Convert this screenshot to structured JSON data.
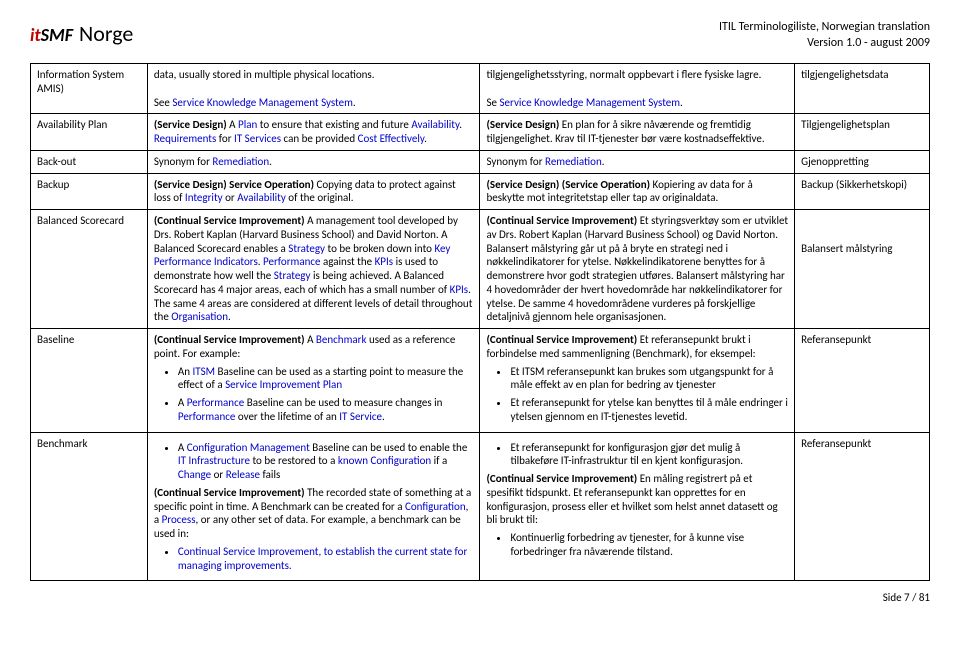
{
  "header": {
    "logo_it": "it",
    "logo_smf": "SMF",
    "title": "Norge",
    "meta_line1": "ITIL Terminologiliste, Norwegian translation",
    "meta_line2": "Version 1.0 - august 2009"
  },
  "rows": [
    {
      "term": "Information System AMIS)",
      "en_parts": [
        {
          "t": "data, usually stored in multiple physical locations."
        },
        {
          "br": true
        },
        {
          "t": "See "
        },
        {
          "t": "Service Knowledge Management System",
          "link": true
        },
        {
          "t": "."
        }
      ],
      "no_parts": [
        {
          "t": "tilgjengelighetsstyring, normalt oppbevart i flere fysiske lagre."
        },
        {
          "br": true
        },
        {
          "t": "Se "
        },
        {
          "t": "Service Knowledge Management System",
          "link": true
        },
        {
          "t": "."
        }
      ],
      "nw": "tilgjengelighetsdata"
    },
    {
      "term": "Availability Plan",
      "en_parts": [
        {
          "t": "(Service Design) ",
          "bold": true
        },
        {
          "t": "A "
        },
        {
          "t": "Plan",
          "link": true
        },
        {
          "t": " to ensure that existing and future "
        },
        {
          "t": "Availability",
          "link": true
        },
        {
          "t": ". "
        },
        {
          "t": "Requirements",
          "link": true
        },
        {
          "t": " for "
        },
        {
          "t": "IT Services",
          "link": true
        },
        {
          "t": " can be provided "
        },
        {
          "t": "Cost Effectively",
          "link": true
        },
        {
          "t": "."
        }
      ],
      "no_parts": [
        {
          "t": "(Service Design) ",
          "bold": true
        },
        {
          "t": "En plan for å sikre nåværende og fremtidig tilgjengelighet. Krav til IT-tjenester bør være kostnadseffektive."
        }
      ],
      "nw": "Tilgjengelighetsplan"
    },
    {
      "term": "Back-out",
      "en_parts": [
        {
          "t": "Synonym for "
        },
        {
          "t": "Remediation",
          "link": true
        },
        {
          "t": "."
        }
      ],
      "no_parts": [
        {
          "t": "Synonym for "
        },
        {
          "t": "Remediation",
          "link": true
        },
        {
          "t": "."
        }
      ],
      "nw": "Gjenoppretting"
    },
    {
      "term": "Backup",
      "en_parts": [
        {
          "t": "(Service Design) Service Operation) ",
          "bold": true
        },
        {
          "t": "Copying data to protect against loss of "
        },
        {
          "t": "Integrity",
          "link": true
        },
        {
          "t": " or "
        },
        {
          "t": "Availability",
          "link": true
        },
        {
          "t": " of the original."
        }
      ],
      "no_parts": [
        {
          "t": "(Service Design) (Service Operation) ",
          "bold": true
        },
        {
          "t": "Kopiering av data for å beskytte mot integritetstap eller tap av originaldata."
        }
      ],
      "nw": "Backup (Sikkerhetskopi)"
    },
    {
      "term": "Balanced Scorecard",
      "en_parts": [
        {
          "t": "(Continual Service Improvement) ",
          "bold": true
        },
        {
          "t": "A management tool developed by Drs. Robert Kaplan (Harvard Business School) and David Norton. A Balanced Scorecard enables a "
        },
        {
          "t": "Strategy",
          "link": true
        },
        {
          "t": " to be broken down into "
        },
        {
          "t": "Key Performance Indicators",
          "link": true
        },
        {
          "t": ". "
        },
        {
          "t": "Performance",
          "link": true
        },
        {
          "t": " against the "
        },
        {
          "t": "KPIs",
          "link": true
        },
        {
          "t": " is used to demonstrate how well the "
        },
        {
          "t": "Strategy",
          "link": true
        },
        {
          "t": " is being achieved. A Balanced Scorecard has 4 major areas, each of which has a small number of "
        },
        {
          "t": "KPIs",
          "link": true
        },
        {
          "t": ". The same 4 areas are considered at different levels of detail throughout the "
        },
        {
          "t": "Organisation",
          "link": true
        },
        {
          "t": "."
        }
      ],
      "no_parts": [
        {
          "t": "(Continual Service Improvement) ",
          "bold": true
        },
        {
          "t": "Et styringsverktøy som er utviklet av Drs. Robert Kaplan (Harvard Business School) og David Norton. Balansert målstyring går ut på å bryte en strategi ned i nøkkelindikatorer for ytelse. Nøkkelindikatorene benyttes for å demonstrere hvor godt strategien utføres. Balansert målstyring har 4 hovedområder der hvert hovedområde har nøkkelindikatorer for ytelse. De samme 4 hovedområdene vurderes på forskjellige detaljnivå gjennom hele organisasjonen."
        }
      ],
      "nw_parts": [
        {
          "br": true
        },
        {
          "t": "Balansert målstyring"
        }
      ]
    },
    {
      "term": "Baseline",
      "en_parts": [
        {
          "t": "(Continual Service Improvement) ",
          "bold": true
        },
        {
          "t": "A "
        },
        {
          "t": "Benchmark",
          "link": true
        },
        {
          "t": " used as a reference point. For example:"
        }
      ],
      "en_bullets": [
        [
          {
            "t": "An "
          },
          {
            "t": "ITSM",
            "link": true
          },
          {
            "t": " Baseline can be used as a starting point to measure the effect of a "
          },
          {
            "t": "Service Improvement Plan",
            "link": true
          }
        ],
        [
          {
            "t": "A "
          },
          {
            "t": "Performance",
            "link": true
          },
          {
            "t": " Baseline can be used to measure changes in "
          },
          {
            "t": "Performance",
            "link": true
          },
          {
            "t": " over the lifetime of an "
          },
          {
            "t": "IT Service",
            "link": true
          },
          {
            "t": "."
          }
        ]
      ],
      "no_parts": [
        {
          "t": "(Continual Service Improvement) ",
          "bold": true
        },
        {
          "t": "Et referansepunkt brukt i forbindelse med sammenligning (Benchmark), for eksempel:"
        }
      ],
      "no_bullets": [
        [
          {
            "t": "Et ITSM referansepunkt kan brukes som utgangspunkt for å måle effekt av en plan for bedring av tjenester"
          }
        ],
        [
          {
            "t": "Et referansepunkt for ytelse kan benyttes til å måle endringer i ytelsen gjennom en IT-tjenestes levetid."
          }
        ]
      ],
      "nw": "Referansepunkt"
    },
    {
      "term": "Benchmark",
      "en_pre_bullets": [
        [
          {
            "t": "A "
          },
          {
            "t": "Configuration Management",
            "link": true
          },
          {
            "t": " Baseline can be used to enable the "
          },
          {
            "t": "IT Infrastructure",
            "link": true
          },
          {
            "t": " to be restored to a "
          },
          {
            "t": "known Configuration",
            "link": true
          },
          {
            "t": " if a "
          },
          {
            "t": "Change",
            "link": true
          },
          {
            "t": " or "
          },
          {
            "t": "Release",
            "link": true
          },
          {
            "t": " fails"
          }
        ]
      ],
      "en_parts": [
        {
          "t": "(Continual Service Improvement) ",
          "bold": true
        },
        {
          "t": "The recorded state of something at a specific point in time. A Benchmark can be created for a "
        },
        {
          "t": "Configuration",
          "link": true
        },
        {
          "t": ", a "
        },
        {
          "t": "Process",
          "link": true
        },
        {
          "t": ", or any other set of data. For example, a benchmark can be used in:"
        }
      ],
      "en_bullets": [
        [
          {
            "t": "Continual Service Improvement, to establish the current state for managing improvements.",
            "link": true
          }
        ]
      ],
      "no_pre_bullets": [
        [
          {
            "t": "Et referansepunkt for konfigurasjon gjør det mulig å tilbakeføre IT-infrastruktur til en kjent konfigurasjon."
          }
        ]
      ],
      "no_parts": [
        {
          "t": "(Continual Service Improvement) ",
          "bold": true
        },
        {
          "t": "En måling registrert på et spesifikt tidspunkt. Et referansepunkt kan opprettes for en konfigurasjon, prosess eller et hvilket som helst annet datasett og bli brukt til:"
        }
      ],
      "no_bullets": [
        [
          {
            "t": "Kontinuerlig forbedring av tjenester, for å kunne vise forbedringer fra nåværende tilstand."
          }
        ]
      ],
      "nw": "Referansepunkt"
    }
  ],
  "footer": "Side 7 / 81"
}
